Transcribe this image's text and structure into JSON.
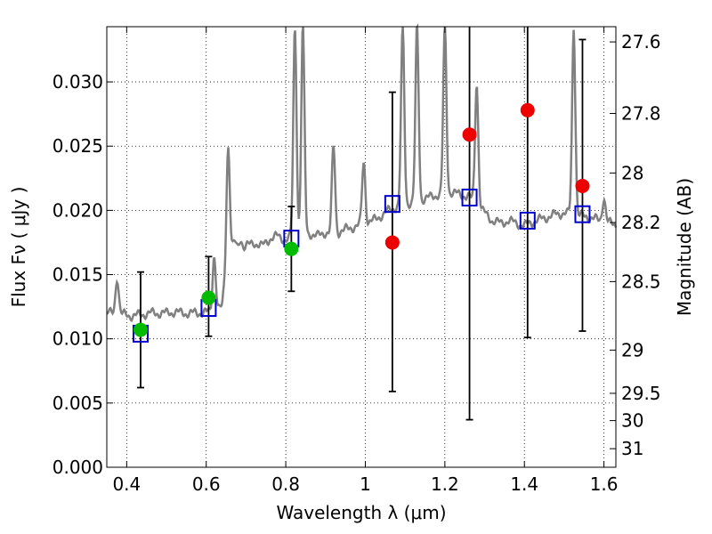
{
  "chart_data": {
    "type": "scatter",
    "xlabel": "Wavelength  λ (μm)",
    "ylabel": "Flux  Fν  ( μJy )",
    "ylabel_right": "Magnitude (AB)",
    "xlim": [
      0.35,
      1.63
    ],
    "ylim": [
      0.0,
      0.0343
    ],
    "grid": true,
    "x_ticks": [
      0.4,
      0.6,
      0.8,
      1.0,
      1.2,
      1.4,
      1.6
    ],
    "x_tick_labels": [
      "0.4",
      "0.6",
      "0.8",
      "1",
      "1.2",
      "1.4",
      "1.6"
    ],
    "y_ticks": [
      0.0,
      0.005,
      0.01,
      0.015,
      0.02,
      0.025,
      0.03
    ],
    "y_tick_labels": [
      "0.000",
      "0.005",
      "0.010",
      "0.015",
      "0.020",
      "0.025",
      "0.030"
    ],
    "right_ticks": [
      27.6,
      27.8,
      28,
      28.2,
      28.5,
      29,
      29.5,
      30,
      31
    ],
    "right_tick_labels": [
      "27.6",
      "27.8",
      "28",
      "28.2",
      "28.5",
      "29",
      "29.5",
      "30",
      "31"
    ],
    "colors": {
      "spectrum": "#808080",
      "model": "#0000cc",
      "detection": "#00bb00",
      "upper_limit": "#ee0000",
      "errorbar": "#000000"
    },
    "observed_points": [
      {
        "x": 0.435,
        "y": 0.0107,
        "yerr_low": 0.0045,
        "yerr_high": 0.0045,
        "color": "green"
      },
      {
        "x": 0.606,
        "y": 0.0132,
        "yerr_low": 0.003,
        "yerr_high": 0.0032,
        "color": "green"
      },
      {
        "x": 0.814,
        "y": 0.017,
        "yerr_low": 0.0033,
        "yerr_high": 0.0033,
        "color": "green"
      },
      {
        "x": 1.068,
        "y": 0.0175,
        "yerr_low": 0.0116,
        "yerr_high": 0.0117,
        "color": "red"
      },
      {
        "x": 1.262,
        "y": 0.0259,
        "yerr_low": 0.0222,
        "yerr_high": 0.0084,
        "color": "red"
      },
      {
        "x": 1.408,
        "y": 0.0278,
        "yerr_low": 0.0177,
        "yerr_high": 0.0065,
        "color": "red"
      },
      {
        "x": 1.546,
        "y": 0.0219,
        "yerr_low": 0.0113,
        "yerr_high": 0.0114,
        "color": "red"
      }
    ],
    "model_points": [
      {
        "x": 0.435,
        "y": 0.0104
      },
      {
        "x": 0.606,
        "y": 0.0124
      },
      {
        "x": 0.814,
        "y": 0.0178
      },
      {
        "x": 1.068,
        "y": 0.0205
      },
      {
        "x": 1.262,
        "y": 0.021
      },
      {
        "x": 1.408,
        "y": 0.0192
      },
      {
        "x": 1.546,
        "y": 0.0197
      }
    ],
    "spectrum": {
      "x": [
        0.35,
        0.37,
        0.39,
        0.41,
        0.42,
        0.44,
        0.46,
        0.48,
        0.5,
        0.52,
        0.54,
        0.56,
        0.58,
        0.6,
        0.62,
        0.64,
        0.65,
        0.66,
        0.68,
        0.7,
        0.72,
        0.74,
        0.76,
        0.78,
        0.8,
        0.82,
        0.84,
        0.86,
        0.88,
        0.9,
        0.92,
        0.94,
        0.96,
        0.98,
        1.0,
        1.02,
        1.04,
        1.06,
        1.08,
        1.1,
        1.12,
        1.14,
        1.16,
        1.18,
        1.2,
        1.22,
        1.24,
        1.26,
        1.28,
        1.3,
        1.32,
        1.34,
        1.36,
        1.38,
        1.4,
        1.42,
        1.44,
        1.46,
        1.48,
        1.5,
        1.52,
        1.54,
        1.56,
        1.58,
        1.6,
        1.63
      ],
      "y": [
        0.012,
        0.012,
        0.0119,
        0.0118,
        0.0118,
        0.0119,
        0.012,
        0.012,
        0.012,
        0.0121,
        0.012,
        0.012,
        0.012,
        0.0121,
        0.012,
        0.0125,
        0.0155,
        0.017,
        0.0168,
        0.0172,
        0.0175,
        0.0172,
        0.0178,
        0.018,
        0.0177,
        0.018,
        0.0179,
        0.0182,
        0.018,
        0.0183,
        0.0181,
        0.0184,
        0.0186,
        0.0188,
        0.019,
        0.0192,
        0.0196,
        0.02,
        0.0203,
        0.0205,
        0.0206,
        0.0208,
        0.021,
        0.0212,
        0.0213,
        0.0214,
        0.0212,
        0.0211,
        0.0205,
        0.0198,
        0.0192,
        0.019,
        0.0192,
        0.019,
        0.0188,
        0.0191,
        0.0193,
        0.0195,
        0.0197,
        0.0198,
        0.0197,
        0.0196,
        0.0195,
        0.0193,
        0.0191,
        0.0189
      ]
    },
    "emission_lines": [
      {
        "x": 0.376,
        "peak": 0.0148
      },
      {
        "x": 0.62,
        "peak": 0.0165
      },
      {
        "x": 0.655,
        "peak": 0.025
      },
      {
        "x": 0.672,
        "peak": 0.0175
      },
      {
        "x": 0.686,
        "peak": 0.0178
      },
      {
        "x": 0.823,
        "peak": 0.0343
      },
      {
        "x": 0.843,
        "peak": 0.0343
      },
      {
        "x": 0.92,
        "peak": 0.025
      },
      {
        "x": 0.996,
        "peak": 0.0238
      },
      {
        "x": 1.094,
        "peak": 0.0343
      },
      {
        "x": 1.13,
        "peak": 0.0343
      },
      {
        "x": 1.2,
        "peak": 0.0343
      },
      {
        "x": 1.28,
        "peak": 0.03
      },
      {
        "x": 1.524,
        "peak": 0.0343
      },
      {
        "x": 1.6,
        "peak": 0.021
      }
    ]
  }
}
